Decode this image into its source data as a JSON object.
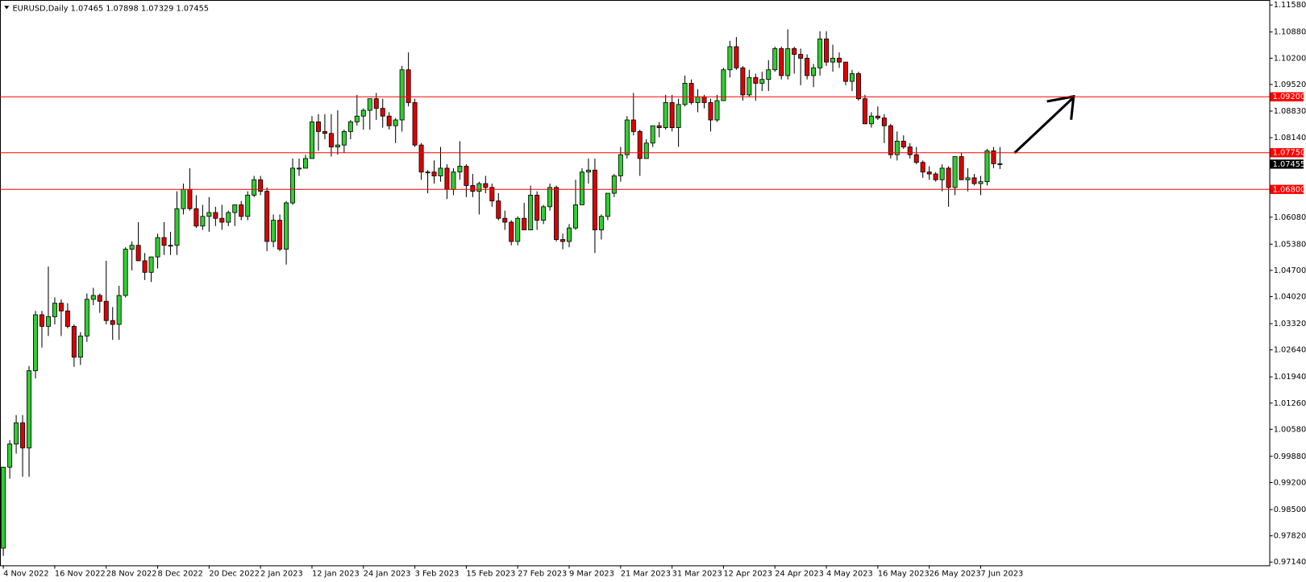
{
  "chart_data": {
    "type": "candlestick",
    "title": "EURUSD,Daily 1.07465 1.07898 1.07329 1.07455",
    "categories": [
      "4 Nov 2022",
      null,
      null,
      null,
      null,
      null,
      null,
      null,
      "16 Nov 2022",
      null,
      null,
      null,
      null,
      null,
      null,
      null,
      "28 Nov 2022",
      null,
      null,
      null,
      null,
      null,
      null,
      null,
      "8 Dec 2022",
      null,
      null,
      null,
      null,
      null,
      null,
      null,
      "20 Dec 2022",
      null,
      null,
      null,
      null,
      null,
      null,
      null,
      "2 Jan 2023",
      null,
      null,
      null,
      null,
      null,
      null,
      null,
      "12 Jan 2023",
      null,
      null,
      null,
      null,
      null,
      null,
      null,
      "24 Jan 2023",
      null,
      null,
      null,
      null,
      null,
      null,
      null,
      "3 Feb 2023",
      null,
      null,
      null,
      null,
      null,
      null,
      null,
      "15 Feb 2023",
      null,
      null,
      null,
      null,
      null,
      null,
      null,
      "27 Feb 2023",
      null,
      null,
      null,
      null,
      null,
      null,
      null,
      "9 Mar 2023",
      null,
      null,
      null,
      null,
      null,
      null,
      null,
      "21 Mar 2023",
      null,
      null,
      null,
      null,
      null,
      null,
      null,
      "31 Mar 2023",
      null,
      null,
      null,
      null,
      null,
      null,
      null,
      "12 Apr 2023",
      null,
      null,
      null,
      null,
      null,
      null,
      null,
      "24 Apr 2023",
      null,
      null,
      null,
      null,
      null,
      null,
      null,
      "4 May 2023",
      null,
      null,
      null,
      null,
      null,
      null,
      null,
      "16 May 2023",
      null,
      null,
      null,
      null,
      null,
      null,
      null,
      "26 May 2023",
      null,
      null,
      null,
      null,
      null,
      null,
      null,
      "7 Jun 2023",
      null,
      null,
      null
    ],
    "open": [
      0.975,
      0.996,
      1.002,
      1.0075,
      1.001,
      1.021,
      1.0355,
      1.0325,
      1.035,
      1.0385,
      1.0365,
      1.0325,
      1.0245,
      1.03,
      1.0395,
      1.0405,
      1.039,
      1.034,
      1.033,
      1.0405,
      1.0525,
      1.0535,
      1.0495,
      1.0465,
      1.0505,
      1.0555,
      1.0535,
      1.0535,
      1.063,
      1.068,
      1.063,
      1.0585,
      1.061,
      1.062,
      1.0605,
      1.0595,
      1.062,
      1.064,
      1.061,
      1.0665,
      1.0705,
      1.0675,
      1.0545,
      1.06,
      1.0525,
      1.0645,
      1.0735,
      1.0735,
      1.076,
      1.0855,
      1.083,
      1.0825,
      1.079,
      1.0795,
      1.083,
      1.0855,
      1.087,
      1.0885,
      1.0915,
      1.089,
      1.087,
      1.0845,
      1.086,
      1.099,
      1.0905,
      1.0795,
      1.0725,
      1.0725,
      1.0715,
      1.0735,
      1.068,
      1.0725,
      1.074,
      1.069,
      1.0675,
      1.0695,
      1.0685,
      1.065,
      1.0605,
      1.0595,
      1.0545,
      1.0605,
      1.0575,
      1.0665,
      1.06,
      1.0635,
      1.0685,
      1.055,
      1.0545,
      1.058,
      1.064,
      1.0725,
      1.073,
      1.0575,
      1.061,
      1.067,
      1.0715,
      1.077,
      1.086,
      1.083,
      1.076,
      1.08,
      1.0845,
      1.084,
      1.0905,
      1.084,
      1.09,
      1.0955,
      1.0905,
      1.092,
      1.0905,
      1.086,
      1.091,
      1.099,
      1.105,
      1.0995,
      1.0925,
      1.097,
      1.0955,
      1.0965,
      1.099,
      1.1045,
      1.0975,
      1.1045,
      1.103,
      1.102,
      1.0975,
      1.0995,
      1.107,
      1.101,
      1.102,
      1.101,
      1.096,
      1.098,
      1.0915,
      1.085,
      1.087,
      1.0865,
      1.0845,
      1.077,
      1.0805,
      1.079,
      1.077,
      1.075,
      1.0725,
      1.072,
      1.0705,
      1.0735,
      1.0685,
      1.0765,
      1.0705,
      1.071,
      1.0695,
      1.07,
      1.078,
      1.07465
    ],
    "high": [
      0.996,
      1.003,
      1.0095,
      1.0095,
      1.0222,
      1.0365,
      1.0365,
      1.048,
      1.04,
      1.0395,
      1.0385,
      1.033,
      1.031,
      1.041,
      1.0425,
      1.041,
      1.0495,
      1.0375,
      1.043,
      1.053,
      1.0545,
      1.0595,
      1.0515,
      1.0505,
      1.0565,
      1.0595,
      1.057,
      1.0675,
      1.0695,
      1.0735,
      1.0665,
      1.064,
      1.066,
      1.0635,
      1.064,
      1.0625,
      1.064,
      1.065,
      1.0675,
      1.0715,
      1.0715,
      1.0685,
      1.0615,
      1.0615,
      1.065,
      1.076,
      1.076,
      1.077,
      1.087,
      1.0875,
      1.0875,
      1.0875,
      1.0885,
      1.0835,
      1.086,
      1.0925,
      1.089,
      1.0915,
      1.093,
      1.0915,
      1.088,
      1.0865,
      1.1,
      1.1035,
      1.0915,
      1.08,
      1.073,
      1.0755,
      1.079,
      1.0745,
      1.0735,
      1.0805,
      1.0745,
      1.072,
      1.07,
      1.0715,
      1.0695,
      1.067,
      1.0625,
      1.06,
      1.061,
      1.0645,
      1.069,
      1.0675,
      1.064,
      1.0695,
      1.069,
      1.0565,
      1.059,
      1.0705,
      1.0735,
      1.076,
      1.076,
      1.0615,
      1.067,
      1.072,
      1.079,
      1.087,
      1.093,
      1.0835,
      1.081,
      1.0845,
      1.0855,
      1.0925,
      1.0925,
      1.0915,
      1.0975,
      1.0965,
      1.094,
      1.0925,
      1.0915,
      1.0925,
      1.0995,
      1.1065,
      1.1075,
      1.1,
      1.099,
      1.098,
      1.0985,
      1.1015,
      1.105,
      1.105,
      1.1095,
      1.105,
      1.1045,
      1.103,
      1.1005,
      1.109,
      1.109,
      1.1055,
      1.1035,
      1.101,
      1.099,
      1.0985,
      1.0925,
      1.088,
      1.0895,
      1.0875,
      1.085,
      1.083,
      1.082,
      1.08,
      1.079,
      1.0755,
      1.074,
      1.0725,
      1.0745,
      1.074,
      1.0765,
      1.0775,
      1.0735,
      1.072,
      1.0715,
      1.0785,
      1.079,
      1.07898
    ],
    "low": [
      0.973,
      0.993,
      0.9995,
      0.9935,
      0.9935,
      1.019,
      1.027,
      1.03,
      1.033,
      1.03,
      1.032,
      1.022,
      1.0225,
      1.0285,
      1.038,
      1.036,
      1.033,
      1.029,
      1.029,
      1.04,
      1.047,
      1.0495,
      1.0445,
      1.044,
      1.0475,
      1.051,
      1.051,
      1.051,
      1.0615,
      1.0625,
      1.058,
      1.0575,
      1.057,
      1.0585,
      1.0575,
      1.0585,
      1.0585,
      1.06,
      1.06,
      1.066,
      1.0665,
      1.052,
      1.053,
      1.052,
      1.0485,
      1.064,
      1.0715,
      1.0735,
      1.076,
      1.078,
      1.081,
      1.0765,
      1.077,
      1.0775,
      1.081,
      1.0845,
      1.0835,
      1.0835,
      1.086,
      1.084,
      1.0835,
      1.08,
      1.083,
      1.0895,
      1.079,
      1.0705,
      1.067,
      1.0695,
      1.07,
      1.0655,
      1.0665,
      1.0705,
      1.066,
      1.066,
      1.0615,
      1.067,
      1.0635,
      1.06,
      1.0575,
      1.0535,
      1.0535,
      1.0575,
      1.0575,
      1.0575,
      1.059,
      1.0625,
      1.0545,
      1.0525,
      1.053,
      1.0575,
      1.064,
      1.0695,
      1.0515,
      1.055,
      1.06,
      1.066,
      1.07,
      1.076,
      1.082,
      1.0715,
      1.076,
      1.079,
      1.0815,
      1.0835,
      1.083,
      1.079,
      1.0895,
      1.09,
      1.088,
      1.089,
      1.083,
      1.0855,
      1.091,
      1.097,
      1.099,
      1.091,
      1.092,
      1.091,
      1.0935,
      1.0935,
      1.0985,
      1.0965,
      1.0965,
      1.098,
      1.095,
      1.0965,
      1.0945,
      1.0975,
      1.1,
      1.0985,
      1.0995,
      1.095,
      1.0935,
      1.091,
      1.085,
      1.084,
      1.086,
      1.08,
      1.076,
      1.0755,
      1.0785,
      1.076,
      1.0745,
      1.071,
      1.0705,
      1.07,
      1.0675,
      1.0635,
      1.0665,
      1.0705,
      1.0675,
      1.069,
      1.0665,
      1.069,
      1.0735,
      1.07329
    ],
    "close": [
      0.996,
      1.002,
      1.0075,
      1.001,
      1.021,
      1.0355,
      1.0325,
      1.035,
      1.0385,
      1.0365,
      1.0325,
      1.0245,
      1.03,
      1.0395,
      1.0405,
      1.039,
      1.034,
      1.033,
      1.0405,
      1.0525,
      1.0535,
      1.0495,
      1.0465,
      1.0505,
      1.0555,
      1.0535,
      1.0535,
      1.063,
      1.068,
      1.063,
      1.0585,
      1.061,
      1.062,
      1.0605,
      1.0595,
      1.062,
      1.064,
      1.061,
      1.0665,
      1.0705,
      1.0675,
      1.0545,
      1.06,
      1.0525,
      1.0645,
      1.0735,
      1.0735,
      1.076,
      1.0855,
      1.083,
      1.0825,
      1.079,
      1.0795,
      1.083,
      1.0855,
      1.087,
      1.0885,
      1.0915,
      1.089,
      1.087,
      1.0845,
      1.086,
      1.099,
      1.0905,
      1.0795,
      1.0725,
      1.0725,
      1.0715,
      1.0735,
      1.068,
      1.0725,
      1.074,
      1.069,
      1.0675,
      1.0695,
      1.0685,
      1.065,
      1.0605,
      1.0595,
      1.0545,
      1.0605,
      1.0575,
      1.0665,
      1.06,
      1.0635,
      1.0685,
      1.055,
      1.0545,
      1.058,
      1.064,
      1.0725,
      1.073,
      1.0575,
      1.061,
      1.067,
      1.0715,
      1.077,
      1.086,
      1.083,
      1.076,
      1.08,
      1.0845,
      1.084,
      1.0905,
      1.084,
      1.09,
      1.0955,
      1.0905,
      1.092,
      1.0905,
      1.086,
      1.091,
      1.099,
      1.105,
      1.0995,
      1.0925,
      1.097,
      1.0955,
      1.0965,
      1.099,
      1.1045,
      1.0975,
      1.1045,
      1.103,
      1.102,
      1.0975,
      1.0995,
      1.107,
      1.101,
      1.102,
      1.101,
      1.096,
      1.098,
      1.0915,
      1.085,
      1.087,
      1.0865,
      1.0845,
      1.077,
      1.0805,
      1.079,
      1.077,
      1.075,
      1.0725,
      1.072,
      1.0705,
      1.0735,
      1.0685,
      1.0765,
      1.0705,
      1.071,
      1.0695,
      1.07,
      1.078,
      1.07465,
      1.07455
    ],
    "up_color": "#32cd32",
    "down_color": "#e00000",
    "ylim": [
      0.9714,
      1.1158
    ],
    "yticks": [
      {
        "value": 1.1158,
        "label": "1.11580"
      },
      {
        "value": 1.1088,
        "label": "1.10880"
      },
      {
        "value": 1.102,
        "label": "1.10200"
      },
      {
        "value": 1.0952,
        "label": "1.09520"
      },
      {
        "value": 1.0883,
        "label": "1.08830"
      },
      {
        "value": 1.0814,
        "label": "1.08140"
      },
      {
        "value": 1.0608,
        "label": "1.06080"
      },
      {
        "value": 1.0538,
        "label": "1.05380"
      },
      {
        "value": 1.047,
        "label": "1.04700"
      },
      {
        "value": 1.0402,
        "label": "1.04020"
      },
      {
        "value": 1.0332,
        "label": "1.03320"
      },
      {
        "value": 1.0264,
        "label": "1.02640"
      },
      {
        "value": 1.0194,
        "label": "1.01940"
      },
      {
        "value": 1.0126,
        "label": "1.01260"
      },
      {
        "value": 1.0058,
        "label": "1.00580"
      },
      {
        "value": 0.9988,
        "label": "0.99880"
      },
      {
        "value": 0.992,
        "label": "0.99200"
      },
      {
        "value": 0.985,
        "label": "0.98500"
      },
      {
        "value": 0.9782,
        "label": "0.97820"
      },
      {
        "value": 0.9714,
        "label": "0.97140"
      }
    ],
    "hlines": [
      {
        "value": 1.092,
        "label": "1.09200",
        "color": "#ff0000"
      },
      {
        "value": 1.0775,
        "label": "1.07750",
        "color": "#ff0000"
      },
      {
        "value": 1.068,
        "label": "1.06800",
        "color": "#ff0000"
      }
    ],
    "price_marker": {
      "value": 1.07455,
      "label": "1.07455",
      "color": "#000000"
    }
  }
}
